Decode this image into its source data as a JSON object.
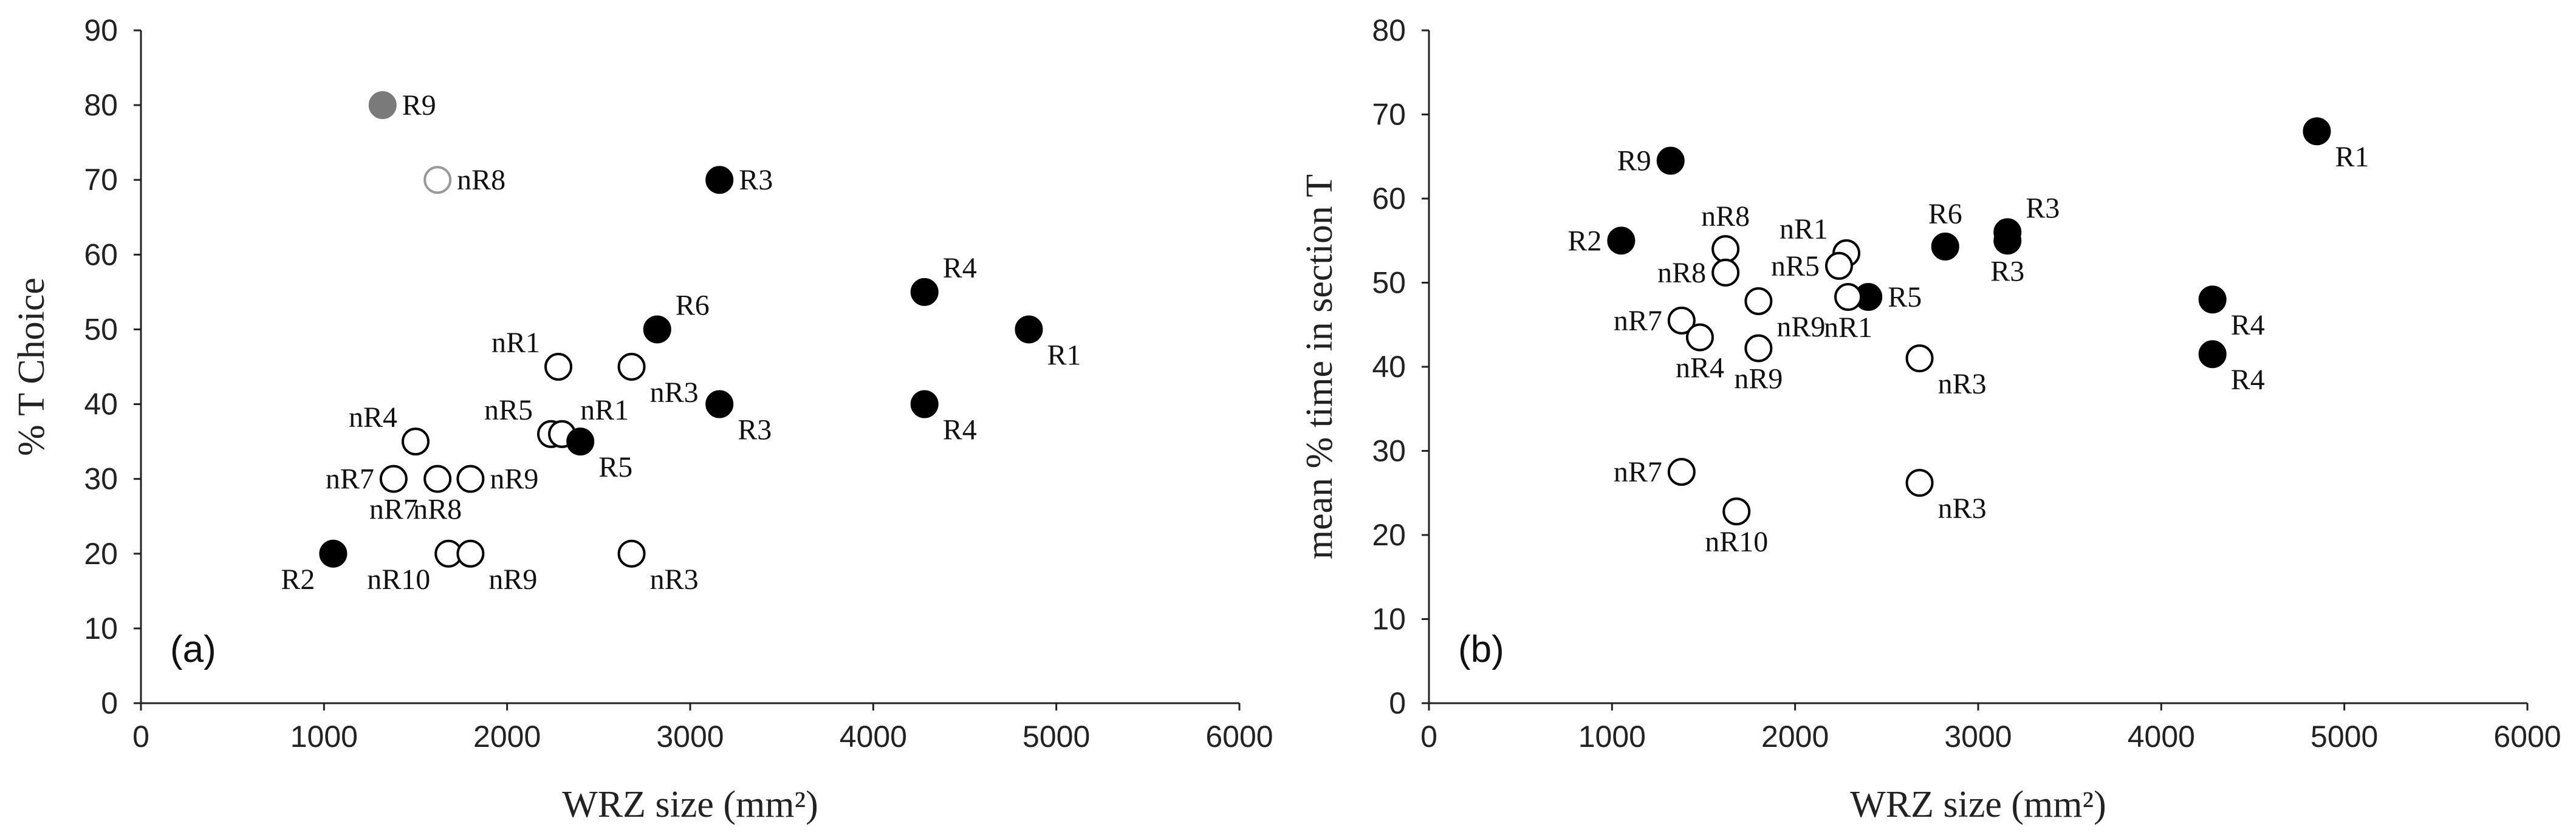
{
  "chart_data": [
    {
      "type": "scatter",
      "panel_label": "(a)",
      "xlabel": "WRZ size (mm²)",
      "ylabel": "% T Choice",
      "xlim": [
        0,
        6000
      ],
      "ylim": [
        0,
        90
      ],
      "x_ticks": [
        0,
        1000,
        2000,
        3000,
        4000,
        5000,
        6000
      ],
      "y_ticks": [
        0,
        10,
        20,
        30,
        40,
        50,
        60,
        70,
        80,
        90
      ],
      "grid": false,
      "points": [
        {
          "x": 1320,
          "y": 80,
          "label": "R9",
          "style": "filled-gray",
          "label_pos": "right"
        },
        {
          "x": 1620,
          "y": 70,
          "label": "nR8",
          "style": "open-gray",
          "label_pos": "right"
        },
        {
          "x": 3160,
          "y": 70,
          "label": "R3",
          "style": "filled",
          "label_pos": "right"
        },
        {
          "x": 4280,
          "y": 55,
          "label": "R4",
          "style": "filled",
          "label_pos": "upright"
        },
        {
          "x": 4850,
          "y": 50,
          "label": "R1",
          "style": "filled",
          "label_pos": "lowright"
        },
        {
          "x": 2820,
          "y": 50,
          "label": "R6",
          "style": "filled",
          "label_pos": "upright"
        },
        {
          "x": 2280,
          "y": 45,
          "label": "nR1",
          "style": "open",
          "label_pos": "upleft"
        },
        {
          "x": 2680,
          "y": 45,
          "label": "nR3",
          "style": "open",
          "label_pos": "lowright"
        },
        {
          "x": 3160,
          "y": 40,
          "label": "R3",
          "style": "filled",
          "label_pos": "lowright"
        },
        {
          "x": 4280,
          "y": 40,
          "label": "R4",
          "style": "filled",
          "label_pos": "lowright"
        },
        {
          "x": 1500,
          "y": 35,
          "label": "nR4",
          "style": "open",
          "label_pos": "upleft"
        },
        {
          "x": 2240,
          "y": 36,
          "label": "nR5",
          "style": "open",
          "label_pos": "upleft"
        },
        {
          "x": 2300,
          "y": 36,
          "label": "nR1",
          "style": "open",
          "label_pos": "upright"
        },
        {
          "x": 2400,
          "y": 35,
          "label": "R5",
          "style": "filled",
          "label_pos": "lowright"
        },
        {
          "x": 1380,
          "y": 30,
          "label": "nR7",
          "style": "open",
          "label_pos": "left"
        },
        {
          "x": 1380,
          "y": 30,
          "label": "nR7",
          "style": "none",
          "label_pos": "below"
        },
        {
          "x": 1620,
          "y": 30,
          "label": "nR8",
          "style": "open",
          "label_pos": "below"
        },
        {
          "x": 1800,
          "y": 30,
          "label": "nR9",
          "style": "open",
          "label_pos": "right"
        },
        {
          "x": 1050,
          "y": 20,
          "label": "R2",
          "style": "filled",
          "label_pos": "lowleft"
        },
        {
          "x": 1680,
          "y": 20,
          "label": "nR10",
          "style": "open",
          "label_pos": "lowleft"
        },
        {
          "x": 1800,
          "y": 20,
          "label": "nR9",
          "style": "open",
          "label_pos": "lowright"
        },
        {
          "x": 2680,
          "y": 20,
          "label": "nR3",
          "style": "open",
          "label_pos": "lowright"
        }
      ]
    },
    {
      "type": "scatter",
      "panel_label": "(b)",
      "xlabel": "WRZ size (mm²)",
      "ylabel": "mean % time in section T",
      "xlim": [
        0,
        6000
      ],
      "ylim": [
        0,
        80
      ],
      "x_ticks": [
        0,
        1000,
        2000,
        3000,
        4000,
        5000,
        6000
      ],
      "y_ticks": [
        0,
        10,
        20,
        30,
        40,
        50,
        60,
        70,
        80
      ],
      "grid": false,
      "points": [
        {
          "x": 4850,
          "y": 68,
          "label": "R1",
          "style": "filled",
          "label_pos": "lowright"
        },
        {
          "x": 1320,
          "y": 64.5,
          "label": "R9",
          "style": "filled",
          "label_pos": "left"
        },
        {
          "x": 1050,
          "y": 55,
          "label": "R2",
          "style": "filled",
          "label_pos": "left"
        },
        {
          "x": 1620,
          "y": 54,
          "label": "nR8",
          "style": "open",
          "label_pos": "up"
        },
        {
          "x": 2280,
          "y": 53.5,
          "label": "nR1",
          "style": "open",
          "label_pos": "upleft"
        },
        {
          "x": 2820,
          "y": 54.3,
          "label": "R6",
          "style": "filled",
          "label_pos": "up"
        },
        {
          "x": 3160,
          "y": 56,
          "label": "R3",
          "style": "filled",
          "label_pos": "upright"
        },
        {
          "x": 3160,
          "y": 55,
          "label": "R3",
          "style": "filled",
          "label_pos": "below"
        },
        {
          "x": 2240,
          "y": 52,
          "label": "nR5",
          "style": "open",
          "label_pos": "left"
        },
        {
          "x": 1620,
          "y": 51.2,
          "label": "nR8",
          "style": "open",
          "label_pos": "left"
        },
        {
          "x": 2400,
          "y": 48.3,
          "label": "R5",
          "style": "filled",
          "label_pos": "right"
        },
        {
          "x": 2290,
          "y": 48.3,
          "label": "nR1",
          "style": "open",
          "label_pos": "below"
        },
        {
          "x": 1800,
          "y": 47.8,
          "label": "nR9",
          "style": "open",
          "label_pos": "lowright"
        },
        {
          "x": 4280,
          "y": 48,
          "label": "R4",
          "style": "filled",
          "label_pos": "lowright"
        },
        {
          "x": 1380,
          "y": 45.5,
          "label": "nR7",
          "style": "open",
          "label_pos": "left"
        },
        {
          "x": 1480,
          "y": 43.5,
          "label": "nR4",
          "style": "open",
          "label_pos": "below"
        },
        {
          "x": 1800,
          "y": 42.2,
          "label": "nR9",
          "style": "open",
          "label_pos": "below"
        },
        {
          "x": 2680,
          "y": 41,
          "label": "nR3",
          "style": "open",
          "label_pos": "lowright"
        },
        {
          "x": 4280,
          "y": 41.5,
          "label": "R4",
          "style": "filled",
          "label_pos": "lowright"
        },
        {
          "x": 1380,
          "y": 27.5,
          "label": "nR7",
          "style": "open",
          "label_pos": "left"
        },
        {
          "x": 2680,
          "y": 26.2,
          "label": "nR3",
          "style": "open",
          "label_pos": "lowright"
        },
        {
          "x": 1680,
          "y": 22.8,
          "label": "nR10",
          "style": "open",
          "label_pos": "below"
        }
      ]
    }
  ]
}
